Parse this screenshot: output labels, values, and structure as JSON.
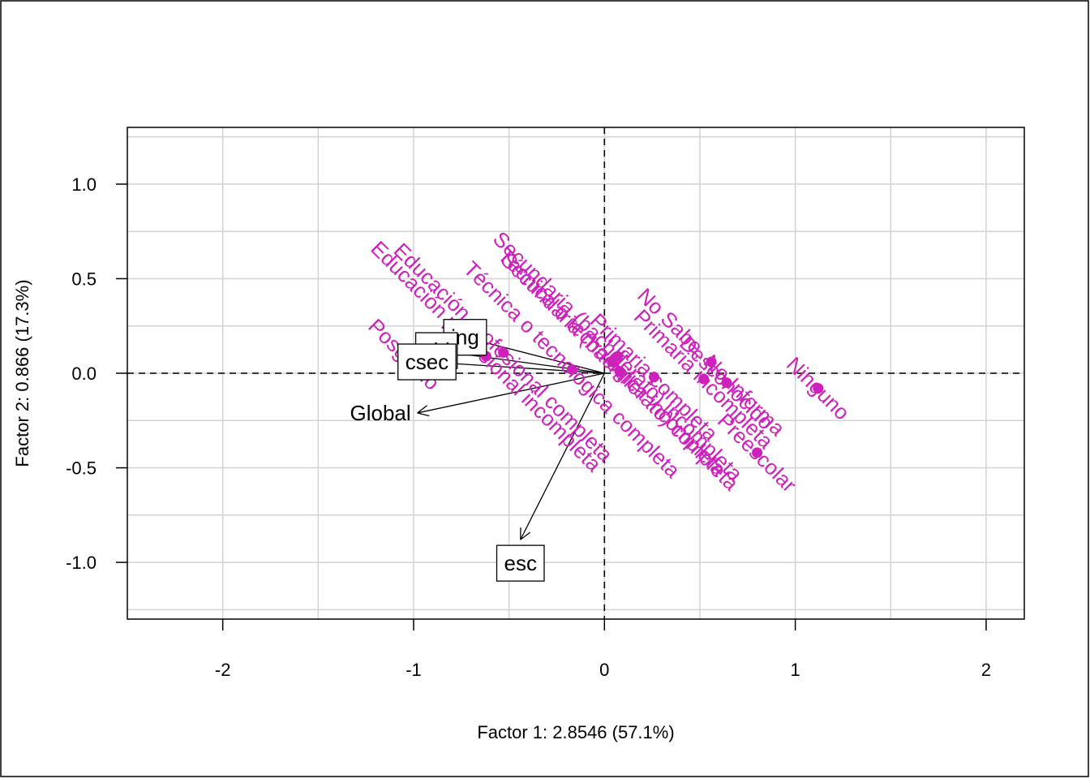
{
  "chart_data": {
    "type": "scatter",
    "title": "",
    "xlabel": "Factor 1: 2.8546 (57.1%)",
    "ylabel": "Factor 2: 0.866 (17.3%)",
    "xlim": [
      -2.5,
      2.2
    ],
    "ylim": [
      -1.3,
      1.3
    ],
    "x_ticks": [
      -2,
      -1,
      0,
      1,
      2
    ],
    "y_ticks": [
      -1.0,
      -0.5,
      0.0,
      0.5,
      1.0
    ],
    "x_tick_labels": [
      "-2",
      "-1",
      "0",
      "1",
      "2"
    ],
    "y_tick_labels": [
      "-1.0",
      "-0.5",
      "0.0",
      "0.5",
      "1.0"
    ],
    "grid": true,
    "reference_lines": {
      "x": 0,
      "y": 0,
      "style": "dashed"
    },
    "colors": {
      "categories": "#cc22bb",
      "variables": "#000000",
      "grid": "#d3d3d3"
    },
    "categories": [
      {
        "name": "Posgrado",
        "x": -1.05,
        "y": 0.1,
        "angle": -45
      },
      {
        "name": "Educación profesional incompleta",
        "x": -0.62,
        "y": 0.09,
        "angle": -45
      },
      {
        "name": "Educación profesional completa",
        "x": -0.53,
        "y": 0.11,
        "angle": -45
      },
      {
        "name": "Técnica o tecnológica completa",
        "x": -0.17,
        "y": 0.02,
        "angle": -45
      },
      {
        "name": "Técnica o tecnológica incompleta",
        "x": 0.04,
        "y": 0.06,
        "angle": -45
      },
      {
        "name": "Secundaria (bachillerato) incompleta",
        "x": 0.07,
        "y": 0.09,
        "angle": -45
      },
      {
        "name": "Secundaria (bachillerato) completa",
        "x": 0.08,
        "y": 0.01,
        "angle": -45
      },
      {
        "name": "Primaria completa",
        "x": 0.26,
        "y": -0.02,
        "angle": -45
      },
      {
        "name": "Primaria incompleta",
        "x": 0.52,
        "y": -0.03,
        "angle": -45
      },
      {
        "name": "No Sabe, No Informa",
        "x": 0.56,
        "y": 0.06,
        "angle": -45
      },
      {
        "name": "Desconocido",
        "x": 0.64,
        "y": -0.05,
        "angle": -45
      },
      {
        "name": "Preescolar",
        "x": 0.8,
        "y": -0.42,
        "angle": -45
      },
      {
        "name": "Ninguno",
        "x": 1.12,
        "y": -0.08,
        "angle": -45
      }
    ],
    "variables": [
      {
        "name": "ing",
        "x": -0.73,
        "y": 0.19,
        "boxed": true
      },
      {
        "name": "cld",
        "x": -0.88,
        "y": 0.12,
        "boxed": true
      },
      {
        "name": "csec",
        "x": -0.93,
        "y": 0.06,
        "boxed": true
      },
      {
        "name": "esc",
        "x": -0.44,
        "y": -0.88,
        "boxed": true
      },
      {
        "name": "Global",
        "x": -0.98,
        "y": -0.21,
        "boxed": false
      }
    ]
  }
}
